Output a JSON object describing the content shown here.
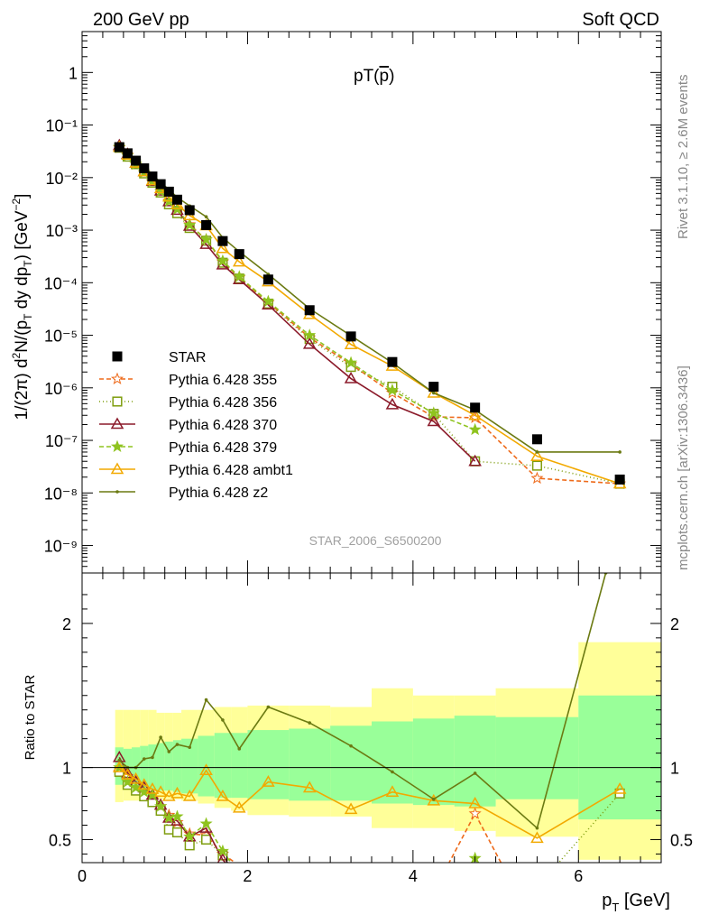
{
  "header": {
    "left": "200 GeV pp",
    "right": "Soft QCD"
  },
  "side_labels": {
    "rivet": "Rivet 3.1.10, ≥ 2.6M events",
    "mcplots": "mcplots.cern.ch [arXiv:1306.3436]"
  },
  "watermark": "STAR_2006_S6500200",
  "chart_data": [
    {
      "type": "scatter",
      "panel": "main",
      "title": "pT(p̄)",
      "title_parts": {
        "base": "pT(",
        "particle": "p",
        "close": ")"
      },
      "ylabel": "1/(2π) d²N/(p⊥ dy dp⊥) [GeV⁻²]",
      "ylabel_parts": {
        "a": "1/(2π) d",
        "sup2": "2",
        "b": "N/(p",
        "sub1": "T",
        "c": " dy dp",
        "sub2": "T",
        "d": ") [GeV",
        "sup_neg2": "−2",
        "e": "]"
      },
      "yscale": "log",
      "ylim": [
        3e-10,
        6
      ],
      "xlim": [
        0,
        7
      ],
      "yticks": [
        "10⁻⁹",
        "10⁻⁸",
        "10⁻⁷",
        "10⁻⁶",
        "10⁻⁵",
        "10⁻⁴",
        "10⁻³",
        "10⁻²",
        "10⁻¹",
        "1"
      ],
      "ytick_values": [
        1e-09,
        1e-08,
        1e-07,
        1e-06,
        1e-05,
        0.0001,
        0.001,
        0.01,
        0.1,
        1
      ],
      "legend_position": "left-center",
      "series": [
        {
          "name": "STAR",
          "color": "#000000",
          "marker": "square-filled",
          "x": [
            0.45,
            0.55,
            0.65,
            0.75,
            0.85,
            0.95,
            1.05,
            1.15,
            1.3,
            1.5,
            1.7,
            1.9,
            2.25,
            2.75,
            3.25,
            3.75,
            4.25,
            4.75,
            5.5,
            6.5
          ],
          "y": [
            0.038,
            0.029,
            0.021,
            0.015,
            0.0105,
            0.0075,
            0.0054,
            0.0038,
            0.0024,
            0.00125,
            0.00062,
            0.00035,
            0.000115,
            3e-05,
            9.5e-06,
            3.1e-06,
            1.05e-06,
            4.2e-07,
            1.05e-07,
            1.8e-08
          ]
        },
        {
          "name": "Pythia 6.428 355",
          "color": "#ee6a1a",
          "marker": "star-open",
          "dash": "5,3",
          "x": [
            0.45,
            0.55,
            0.65,
            0.75,
            0.85,
            0.95,
            1.05,
            1.15,
            1.3,
            1.5,
            1.7,
            1.9,
            2.25,
            2.75,
            3.25,
            3.75,
            4.25,
            4.75,
            5.5,
            6.5
          ],
          "y": [
            0.037,
            0.027,
            0.018,
            0.0125,
            0.0082,
            0.0055,
            0.0036,
            0.0025,
            0.00128,
            0.00066,
            0.00025,
            0.000125,
            4.2e-05,
            9e-06,
            2.8e-06,
            8e-07,
            2.8e-07,
            2.7e-07,
            1.9e-08,
            1.5e-08
          ]
        },
        {
          "name": "Pythia 6.428 356",
          "color": "#7f9d0f",
          "marker": "square-open",
          "dash": "1,3",
          "x": [
            0.45,
            0.55,
            0.65,
            0.75,
            0.85,
            0.95,
            1.05,
            1.15,
            1.3,
            1.5,
            1.7,
            1.9,
            2.25,
            2.75,
            3.25,
            3.75,
            4.25,
            4.75,
            5.5,
            6.5
          ],
          "y": [
            0.037,
            0.025,
            0.018,
            0.012,
            0.008,
            0.0052,
            0.0031,
            0.0021,
            0.0011,
            0.00063,
            0.00024,
            0.00012,
            4e-05,
            8.5e-06,
            2.5e-06,
            1.05e-06,
            3.2e-07,
            4e-08,
            3.3e-08,
            1.5e-08
          ]
        },
        {
          "name": "Pythia 6.428 370",
          "color": "#8b1a2a",
          "marker": "triangle-open",
          "dash": "",
          "x": [
            0.45,
            0.55,
            0.65,
            0.75,
            0.85,
            0.95,
            1.05,
            1.15,
            1.3,
            1.5,
            1.7,
            1.9,
            2.25,
            2.75,
            3.25,
            3.75,
            4.25,
            4.75
          ],
          "y": [
            0.041,
            0.028,
            0.019,
            0.013,
            0.0085,
            0.0056,
            0.0035,
            0.0024,
            0.0012,
            0.00054,
            0.00022,
            0.000115,
            3.8e-05,
            6.8e-06,
            1.5e-06,
            4.8e-07,
            2.3e-07,
            4e-08
          ]
        },
        {
          "name": "Pythia 6.428 379",
          "color": "#8fc31f",
          "marker": "star-filled",
          "dash": "5,3",
          "x": [
            0.45,
            0.55,
            0.65,
            0.75,
            0.85,
            0.95,
            1.05,
            1.15,
            1.3,
            1.5,
            1.7,
            1.9,
            2.25,
            2.75,
            3.25,
            3.75,
            4.25,
            4.75
          ],
          "y": [
            0.038,
            0.026,
            0.018,
            0.0125,
            0.0085,
            0.0055,
            0.0035,
            0.0025,
            0.00125,
            0.00066,
            0.00026,
            0.00013,
            4.4e-05,
            1e-05,
            3e-06,
            9e-07,
            3.3e-07,
            1.6e-07
          ]
        },
        {
          "name": "Pythia 6.428 ambt1",
          "color": "#f2a900",
          "marker": "triangle-open",
          "dash": "",
          "x": [
            0.45,
            0.55,
            0.65,
            0.75,
            0.85,
            0.95,
            1.05,
            1.15,
            1.3,
            1.5,
            1.7,
            1.9,
            2.25,
            2.75,
            3.25,
            3.75,
            4.25,
            4.75,
            5.5,
            6.5
          ],
          "y": [
            0.038,
            0.027,
            0.019,
            0.013,
            0.0088,
            0.0062,
            0.0043,
            0.0031,
            0.0019,
            0.00122,
            0.00045,
            0.00025,
            0.000105,
            2.5e-05,
            6.7e-06,
            2.6e-06,
            8e-07,
            3e-07,
            5e-08,
            1.5e-08
          ]
        },
        {
          "name": "Pythia 6.428 z2",
          "color": "#6b7a12",
          "marker": "dot",
          "dash": "",
          "x": [
            0.45,
            0.55,
            0.65,
            0.75,
            0.85,
            0.95,
            1.05,
            1.15,
            1.3,
            1.5,
            1.7,
            1.9,
            2.25,
            2.75,
            3.25,
            3.75,
            4.25,
            4.75,
            5.5,
            6.5
          ],
          "y": [
            0.04,
            0.029,
            0.021,
            0.016,
            0.011,
            0.0082,
            0.0059,
            0.0042,
            0.0029,
            0.0018,
            0.00072,
            0.00039,
            0.000145,
            3.2e-05,
            9.8e-06,
            3e-06,
            8e-07,
            3.8e-07,
            6e-08,
            6e-08
          ]
        }
      ]
    },
    {
      "type": "line",
      "panel": "ratio",
      "ylabel": "Ratio to STAR",
      "xlabel": "p_T [GeV]",
      "xlabel_parts": {
        "a": "p",
        "sub": "T",
        "b": " [GeV]"
      },
      "ylim": [
        0.34,
        2.35
      ],
      "xlim": [
        0,
        7
      ],
      "xticks": [
        "0",
        "2",
        "4",
        "6"
      ],
      "xtick_values": [
        0,
        2,
        4,
        6
      ],
      "yticks": [
        "0.5",
        "1",
        "2"
      ],
      "ytick_values": [
        0.5,
        1,
        2
      ],
      "reference_line": 1,
      "bands": {
        "bins": [
          0.4,
          0.5,
          0.6,
          0.7,
          0.8,
          0.9,
          1.0,
          1.1,
          1.2,
          1.4,
          1.6,
          1.8,
          2.0,
          2.5,
          3.0,
          3.5,
          4.0,
          4.5,
          5.0,
          6.0,
          7.0
        ],
        "green_upper": [
          1.14,
          1.13,
          1.14,
          1.15,
          1.16,
          1.17,
          1.18,
          1.19,
          1.2,
          1.22,
          1.24,
          1.24,
          1.26,
          1.27,
          1.29,
          1.32,
          1.34,
          1.36,
          1.35,
          1.5
        ],
        "green_lower": [
          0.88,
          0.87,
          0.86,
          0.85,
          0.85,
          0.84,
          0.84,
          0.83,
          0.82,
          0.8,
          0.79,
          0.79,
          0.78,
          0.77,
          0.77,
          0.75,
          0.74,
          0.73,
          0.78,
          0.64
        ],
        "yellow_upper": [
          1.4,
          1.4,
          1.4,
          1.4,
          1.4,
          1.38,
          1.38,
          1.38,
          1.4,
          1.4,
          1.42,
          1.42,
          1.43,
          1.43,
          1.42,
          1.55,
          1.5,
          1.5,
          1.55,
          1.87
        ],
        "yellow_lower": [
          0.76,
          0.77,
          0.77,
          0.78,
          0.78,
          0.78,
          0.78,
          0.78,
          0.77,
          0.75,
          0.72,
          0.7,
          0.67,
          0.66,
          0.66,
          0.58,
          0.58,
          0.56,
          0.52,
          0.36
        ]
      },
      "series": [
        {
          "name": "Pythia 6.428 355",
          "color": "#ee6a1a",
          "marker": "star-open",
          "dash": "5,3",
          "x": [
            0.45,
            0.55,
            0.65,
            0.75,
            0.85,
            0.95,
            1.05,
            1.15,
            1.3,
            1.5,
            1.7,
            1.9,
            4.4,
            4.75,
            5.1
          ],
          "y": [
            0.97,
            0.94,
            0.86,
            0.83,
            0.78,
            0.73,
            0.67,
            0.62,
            0.54,
            0.53,
            0.4,
            0.32,
            0.3,
            0.68,
            0.3
          ]
        },
        {
          "name": "Pythia 6.428 356",
          "color": "#7f9d0f",
          "marker": "square-open",
          "dash": "1,3",
          "x": [
            0.45,
            0.55,
            0.65,
            0.75,
            0.85,
            0.95,
            1.05,
            1.15,
            1.3,
            1.5,
            1.7,
            1.85,
            5.7,
            6.5
          ],
          "y": [
            0.97,
            0.88,
            0.84,
            0.8,
            0.76,
            0.7,
            0.57,
            0.55,
            0.46,
            0.5,
            0.39,
            0.3,
            0.3,
            0.82
          ]
        },
        {
          "name": "Pythia 6.428 370",
          "color": "#8b1a2a",
          "marker": "triangle-open",
          "dash": "",
          "x": [
            0.45,
            0.55,
            0.65,
            0.75,
            0.85,
            0.95,
            1.05,
            1.15,
            1.3,
            1.5,
            1.7,
            1.8
          ],
          "y": [
            1.07,
            0.96,
            0.9,
            0.86,
            0.81,
            0.74,
            0.65,
            0.63,
            0.52,
            0.58,
            0.36,
            0.3
          ]
        },
        {
          "name": "Pythia 6.428 379",
          "color": "#8fc31f",
          "marker": "star-filled",
          "dash": "5,3",
          "x": [
            0.45,
            0.55,
            0.65,
            0.75,
            0.85,
            0.95,
            1.05,
            1.15,
            1.3,
            1.5,
            1.7,
            1.85,
            4.65,
            4.75,
            4.85
          ],
          "y": [
            1.0,
            0.9,
            0.86,
            0.83,
            0.81,
            0.73,
            0.65,
            0.66,
            0.52,
            0.61,
            0.42,
            0.3,
            0.3,
            0.37,
            0.3
          ]
        },
        {
          "name": "Pythia 6.428 ambt1",
          "color": "#f2a900",
          "marker": "triangle-open",
          "dash": "",
          "x": [
            0.45,
            0.55,
            0.65,
            0.75,
            0.85,
            0.95,
            1.05,
            1.15,
            1.3,
            1.5,
            1.7,
            1.9,
            2.25,
            2.75,
            3.25,
            3.75,
            4.25,
            4.75,
            5.5,
            6.5
          ],
          "y": [
            1.0,
            0.95,
            0.92,
            0.88,
            0.85,
            0.83,
            0.8,
            0.82,
            0.8,
            0.98,
            0.8,
            0.72,
            0.9,
            0.86,
            0.71,
            0.83,
            0.77,
            0.75,
            0.51,
            0.85
          ]
        },
        {
          "name": "Pythia 6.428 z2",
          "color": "#6b7a12",
          "marker": "dot",
          "dash": "",
          "x": [
            0.45,
            0.55,
            0.65,
            0.75,
            0.85,
            0.95,
            1.05,
            1.15,
            1.3,
            1.5,
            1.7,
            1.9,
            2.25,
            2.75,
            3.25,
            3.75,
            4.25,
            4.75,
            5.5,
            6.33
          ],
          "y": [
            1.05,
            1.0,
            1.0,
            1.06,
            1.07,
            1.21,
            1.11,
            1.16,
            1.14,
            1.47,
            1.33,
            1.13,
            1.42,
            1.31,
            1.15,
            0.97,
            0.78,
            0.96,
            0.58,
            2.35
          ]
        }
      ]
    }
  ]
}
